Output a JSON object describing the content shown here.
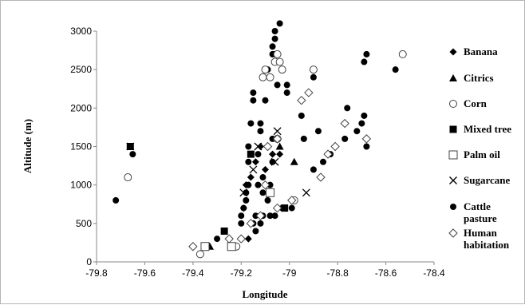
{
  "chart_data": {
    "type": "scatter",
    "title": "",
    "xlabel": "Longitude",
    "ylabel": "Altitude (m)",
    "xlim": [
      -79.8,
      -78.4
    ],
    "ylim": [
      0,
      3000
    ],
    "xticks": [
      "-79.8",
      "-79.6",
      "-79.4",
      "-79.2",
      "-79",
      "-78.8",
      "-78.6",
      "-78.4"
    ],
    "yticks": [
      "0",
      "500",
      "1000",
      "1500",
      "2000",
      "2500",
      "3000"
    ],
    "grid": false,
    "legend_position": "right",
    "series": [
      {
        "name": "Banana",
        "marker": "diamond-filled",
        "points": [
          [
            -79.19,
            700
          ],
          [
            -79.18,
            1000
          ],
          [
            -79.17,
            300
          ],
          [
            -79.16,
            1100
          ],
          [
            -79.14,
            1300
          ],
          [
            -79.12,
            1500
          ],
          [
            -79.1,
            1200
          ],
          [
            -79.07,
            1400
          ],
          [
            -79.04,
            1400
          ],
          [
            -79.02,
            700
          ]
        ]
      },
      {
        "name": "Citrics",
        "marker": "triangle-filled",
        "points": [
          [
            -79.33,
            200
          ],
          [
            -79.04,
            1500
          ],
          [
            -78.98,
            1300
          ]
        ]
      },
      {
        "name": "Corn",
        "marker": "circle-open",
        "points": [
          [
            -79.67,
            1100
          ],
          [
            -79.37,
            100
          ],
          [
            -79.22,
            200
          ],
          [
            -79.11,
            2400
          ],
          [
            -79.1,
            2500
          ],
          [
            -79.08,
            2400
          ],
          [
            -79.06,
            2600
          ],
          [
            -79.05,
            2700
          ],
          [
            -79.04,
            2600
          ],
          [
            -79.03,
            2500
          ],
          [
            -79.05,
            1600
          ],
          [
            -78.98,
            800
          ],
          [
            -78.9,
            2500
          ],
          [
            -78.53,
            2700
          ]
        ]
      },
      {
        "name": "Mixed tree",
        "marker": "square-filled",
        "points": [
          [
            -79.66,
            1500
          ],
          [
            -79.27,
            400
          ],
          [
            -79.16,
            1400
          ],
          [
            -79.02,
            700
          ]
        ]
      },
      {
        "name": "Palm oil",
        "marker": "square-open",
        "points": [
          [
            -79.35,
            200
          ],
          [
            -79.24,
            200
          ],
          [
            -79.08,
            900
          ]
        ]
      },
      {
        "name": "Sugarcane",
        "marker": "x",
        "points": [
          [
            -79.66,
            1500
          ],
          [
            -79.19,
            900
          ],
          [
            -79.15,
            1200
          ],
          [
            -79.13,
            1500
          ],
          [
            -79.06,
            1300
          ],
          [
            -79.05,
            1700
          ],
          [
            -78.93,
            900
          ]
        ]
      },
      {
        "name": "Cattle pasture",
        "marker": "circle-filled",
        "points": [
          [
            -79.72,
            800
          ],
          [
            -79.66,
            1500
          ],
          [
            -79.65,
            1400
          ],
          [
            -79.3,
            300
          ],
          [
            -79.27,
            400
          ],
          [
            -79.24,
            200
          ],
          [
            -79.2,
            500
          ],
          [
            -79.2,
            600
          ],
          [
            -79.19,
            700
          ],
          [
            -79.18,
            800
          ],
          [
            -79.18,
            900
          ],
          [
            -79.17,
            1000
          ],
          [
            -79.17,
            1300
          ],
          [
            -79.17,
            1500
          ],
          [
            -79.16,
            1800
          ],
          [
            -79.15,
            2100
          ],
          [
            -79.15,
            2200
          ],
          [
            -79.15,
            500
          ],
          [
            -79.14,
            400
          ],
          [
            -79.14,
            600
          ],
          [
            -79.13,
            1000
          ],
          [
            -79.13,
            1400
          ],
          [
            -79.12,
            1700
          ],
          [
            -79.12,
            1800
          ],
          [
            -79.12,
            500
          ],
          [
            -79.11,
            600
          ],
          [
            -79.11,
            900
          ],
          [
            -79.11,
            1100
          ],
          [
            -79.1,
            2100
          ],
          [
            -79.09,
            2500
          ],
          [
            -79.09,
            800
          ],
          [
            -79.08,
            1000
          ],
          [
            -79.08,
            600
          ],
          [
            -79.07,
            1300
          ],
          [
            -79.07,
            1600
          ],
          [
            -79.07,
            2700
          ],
          [
            -79.07,
            2800
          ],
          [
            -79.06,
            2900
          ],
          [
            -79.06,
            3000
          ],
          [
            -79.06,
            2700
          ],
          [
            -79.06,
            600
          ],
          [
            -79.05,
            2300
          ],
          [
            -79.04,
            3100
          ],
          [
            -79.03,
            700
          ],
          [
            -79.01,
            2300
          ],
          [
            -79.01,
            2200
          ],
          [
            -78.99,
            700
          ],
          [
            -78.95,
            1900
          ],
          [
            -78.94,
            1600
          ],
          [
            -78.9,
            2400
          ],
          [
            -78.88,
            1700
          ],
          [
            -78.9,
            1200
          ],
          [
            -78.86,
            1300
          ],
          [
            -78.83,
            1400
          ],
          [
            -78.76,
            2000
          ],
          [
            -78.77,
            1600
          ],
          [
            -78.72,
            1700
          ],
          [
            -78.7,
            1800
          ],
          [
            -78.69,
            1900
          ],
          [
            -78.68,
            1500
          ],
          [
            -78.69,
            2600
          ],
          [
            -78.68,
            2700
          ],
          [
            -78.56,
            2500
          ]
        ]
      },
      {
        "name": "Human habitation",
        "marker": "diamond-open",
        "points": [
          [
            -79.4,
            200
          ],
          [
            -79.25,
            300
          ],
          [
            -79.2,
            300
          ],
          [
            -79.16,
            500
          ],
          [
            -79.12,
            600
          ],
          [
            -79.1,
            1000
          ],
          [
            -79.09,
            1500
          ],
          [
            -79.05,
            1600
          ],
          [
            -79.05,
            700
          ],
          [
            -78.99,
            800
          ],
          [
            -78.95,
            2100
          ],
          [
            -78.92,
            2200
          ],
          [
            -78.87,
            1100
          ],
          [
            -78.84,
            1400
          ],
          [
            -78.81,
            1500
          ],
          [
            -78.77,
            1800
          ],
          [
            -78.68,
            1600
          ]
        ]
      }
    ]
  }
}
